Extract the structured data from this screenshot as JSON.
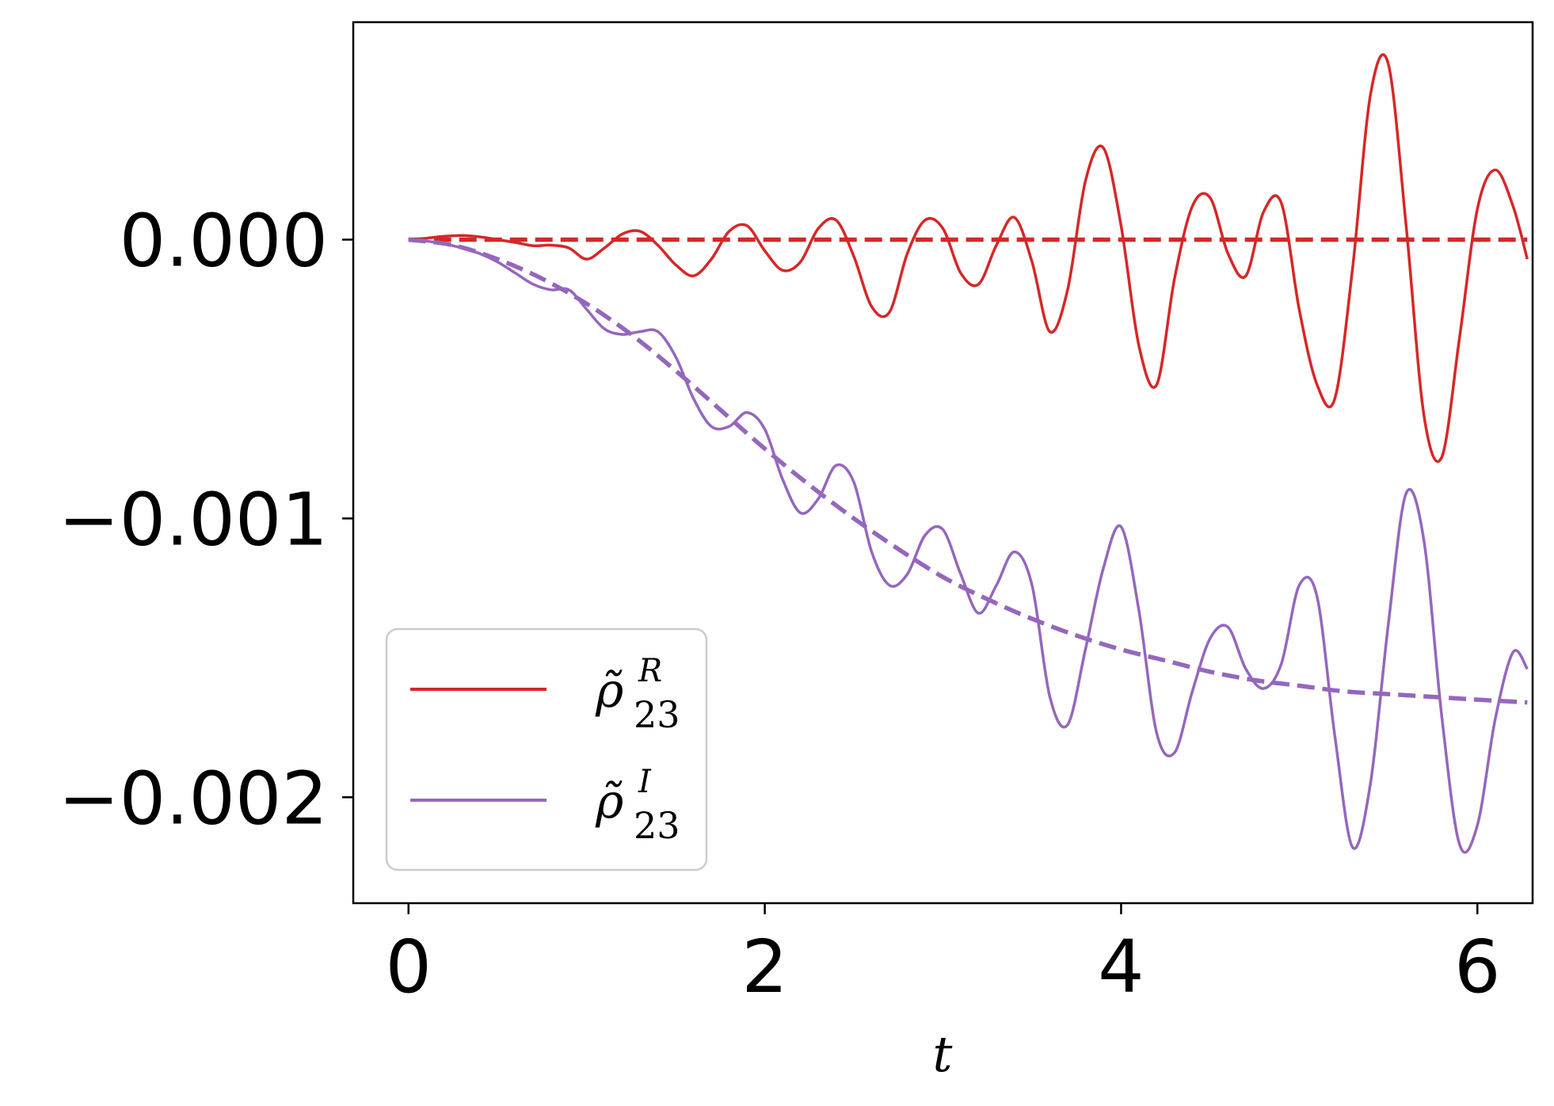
{
  "chart_data": {
    "type": "line",
    "title": "",
    "xlabel": "t",
    "ylabel": "",
    "xlim": [
      -0.31,
      6.31
    ],
    "ylim": [
      -0.00238,
      0.00078
    ],
    "xticks": [
      0,
      2,
      4,
      6
    ],
    "xtick_labels": [
      "0",
      "2",
      "4",
      "6"
    ],
    "yticks": [
      0.0,
      -0.001,
      -0.002
    ],
    "ytick_labels": [
      "0.000",
      "−0.001",
      "−0.002"
    ],
    "grid": false,
    "legend_position": "lower-left",
    "legend": [
      {
        "base": "ρ̃",
        "superscript": "R",
        "subscript": "23",
        "color": "#d62728"
      },
      {
        "base": "ρ̃",
        "superscript": "I",
        "subscript": "23",
        "color": "#9467bd"
      }
    ],
    "series": [
      {
        "name": "rho23_R",
        "style": "solid",
        "color": "#d62728",
        "x": [
          0,
          0.1,
          0.2,
          0.3,
          0.4,
          0.5,
          0.6,
          0.7,
          0.8,
          0.9,
          1.0,
          1.1,
          1.2,
          1.3,
          1.4,
          1.5,
          1.6,
          1.7,
          1.8,
          1.9,
          2.0,
          2.1,
          2.2,
          2.3,
          2.4,
          2.5,
          2.6,
          2.7,
          2.8,
          2.9,
          3.0,
          3.1,
          3.2,
          3.3,
          3.4,
          3.5,
          3.6,
          3.7,
          3.8,
          3.9,
          4.0,
          4.1,
          4.2,
          4.3,
          4.4,
          4.5,
          4.6,
          4.7,
          4.8,
          4.9,
          5.0,
          5.1,
          5.2,
          5.3,
          5.4,
          5.5,
          5.6,
          5.7,
          5.8,
          5.9,
          6.0,
          6.1,
          6.2,
          6.28
        ],
        "y": [
          0,
          5e-06,
          1.2e-05,
          1.5e-05,
          1e-05,
          0.0,
          -1e-05,
          -2.2e-05,
          -2e-05,
          -3e-05,
          -7e-05,
          -3e-05,
          2e-05,
          3e-05,
          -2e-05,
          -9e-05,
          -0.00013,
          -7e-05,
          3e-05,
          5e-05,
          -4e-05,
          -0.00011,
          -8e-05,
          4e-05,
          7e-05,
          -6e-05,
          -0.00024,
          -0.00026,
          -5e-05,
          7e-05,
          4e-05,
          -0.00012,
          -0.00016,
          -2e-05,
          8e-05,
          -8e-05,
          -0.00033,
          -0.00018,
          0.00021,
          0.00033,
          5e-05,
          -0.00038,
          -0.00052,
          -0.00014,
          0.00012,
          0.00015,
          -5e-05,
          -0.00013,
          0.0001,
          0.00013,
          -0.00025,
          -0.00052,
          -0.00057,
          -0.0001,
          0.00052,
          0.00063,
          5e-05,
          -0.00063,
          -0.00078,
          -0.00035,
          0.00011,
          0.00025,
          0.00012,
          -7e-05
        ]
      },
      {
        "name": "rho23_R_trend",
        "style": "dashed",
        "color": "#d62728",
        "x": [
          0,
          6.28
        ],
        "y": [
          0,
          0
        ]
      },
      {
        "name": "rho23_I",
        "style": "solid",
        "color": "#9467bd",
        "x": [
          0,
          0.1,
          0.2,
          0.3,
          0.4,
          0.5,
          0.6,
          0.7,
          0.8,
          0.9,
          1.0,
          1.1,
          1.2,
          1.3,
          1.4,
          1.5,
          1.6,
          1.7,
          1.8,
          1.9,
          2.0,
          2.1,
          2.2,
          2.3,
          2.4,
          2.5,
          2.6,
          2.7,
          2.8,
          2.9,
          3.0,
          3.1,
          3.2,
          3.3,
          3.4,
          3.5,
          3.6,
          3.7,
          3.8,
          3.9,
          4.0,
          4.1,
          4.2,
          4.3,
          4.4,
          4.5,
          4.6,
          4.7,
          4.8,
          4.9,
          5.0,
          5.1,
          5.2,
          5.3,
          5.4,
          5.5,
          5.6,
          5.7,
          5.8,
          5.9,
          6.0,
          6.1,
          6.2,
          6.28
        ],
        "y": [
          0,
          -5e-06,
          -1.5e-05,
          -3e-05,
          -5e-05,
          -8e-05,
          -0.00012,
          -0.00016,
          -0.00018,
          -0.00018,
          -0.00025,
          -0.00032,
          -0.00034,
          -0.00033,
          -0.00033,
          -0.00042,
          -0.00057,
          -0.00067,
          -0.00067,
          -0.00062,
          -0.00068,
          -0.00086,
          -0.00098,
          -0.00093,
          -0.00081,
          -0.00087,
          -0.00112,
          -0.00124,
          -0.0012,
          -0.00106,
          -0.00104,
          -0.0012,
          -0.00134,
          -0.00124,
          -0.00112,
          -0.00124,
          -0.00164,
          -0.00174,
          -0.00147,
          -0.00118,
          -0.00103,
          -0.00133,
          -0.00177,
          -0.00184,
          -0.00162,
          -0.00143,
          -0.00139,
          -0.00154,
          -0.00161,
          -0.00152,
          -0.00124,
          -0.00128,
          -0.00178,
          -0.00218,
          -0.00195,
          -0.00138,
          -0.00091,
          -0.00108,
          -0.00171,
          -0.00217,
          -0.0021,
          -0.00172,
          -0.00148,
          -0.00154
        ]
      },
      {
        "name": "rho23_I_trend",
        "style": "dashed",
        "color": "#9467bd",
        "x": [
          0,
          0.25,
          0.5,
          0.75,
          1.0,
          1.25,
          1.5,
          1.75,
          2.0,
          2.25,
          2.5,
          2.75,
          3.0,
          3.25,
          3.5,
          3.75,
          4.0,
          4.25,
          4.5,
          4.75,
          5.0,
          5.25,
          5.5,
          5.75,
          6.0,
          6.28
        ],
        "y": [
          0,
          -2e-05,
          -7e-05,
          -0.00014,
          -0.00023,
          -0.00034,
          -0.00047,
          -0.00061,
          -0.00075,
          -0.00088,
          -0.001,
          -0.00111,
          -0.00121,
          -0.00129,
          -0.00136,
          -0.00142,
          -0.00147,
          -0.00151,
          -0.00155,
          -0.00158,
          -0.0016,
          -0.00162,
          -0.00163,
          -0.00164,
          -0.00165,
          -0.00166
        ]
      }
    ]
  }
}
